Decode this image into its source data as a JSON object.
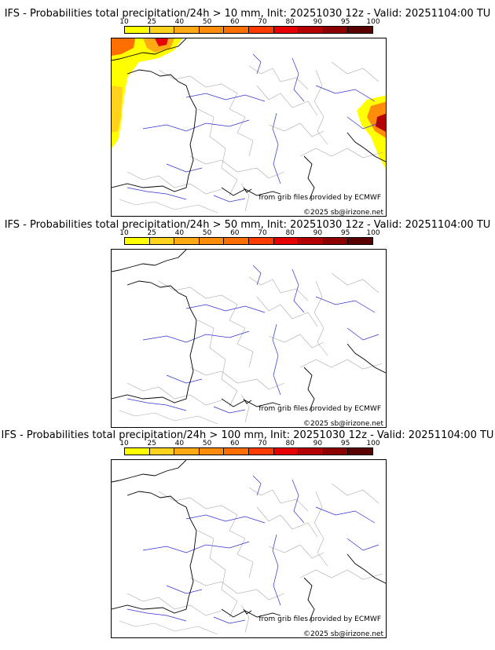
{
  "colorbar": {
    "ticks": [
      "10",
      "25",
      "40",
      "50",
      "60",
      "70",
      "80",
      "90",
      "95",
      "100"
    ],
    "colors": [
      "#ffff00",
      "#ffd21e",
      "#ffaa14",
      "#ff8c0a",
      "#ff6e00",
      "#ff3c00",
      "#e60000",
      "#b40000",
      "#8c0000",
      "#5a0000"
    ]
  },
  "panels": [
    {
      "title": "IFS - Probabilities total precipitation/24h > 10 mm, Init: 20251030 12z - Valid: 20251104:00 TU",
      "source": "from grib files provided by ECMWF",
      "copyright": "©2025 sb@irizone.net",
      "shaded": true
    },
    {
      "title": "IFS - Probabilities total precipitation/24h > 50 mm, Init: 20251030 12z - Valid: 20251104:00 TU",
      "source": "from grib files provided by ECMWF",
      "copyright": "©2025 sb@irizone.net",
      "shaded": false
    },
    {
      "title": "IFS - Probabilities total precipitation/24h > 100 mm, Init: 20251030 12z - Valid: 20251104:00 TU",
      "source": "from grib files provided by ECMWF",
      "copyright": "©2025 sb@irizone.net",
      "shaded": false
    }
  ],
  "colors": {
    "coast": "#000000",
    "border": "#aaaaaa",
    "river": "#3030d0"
  }
}
